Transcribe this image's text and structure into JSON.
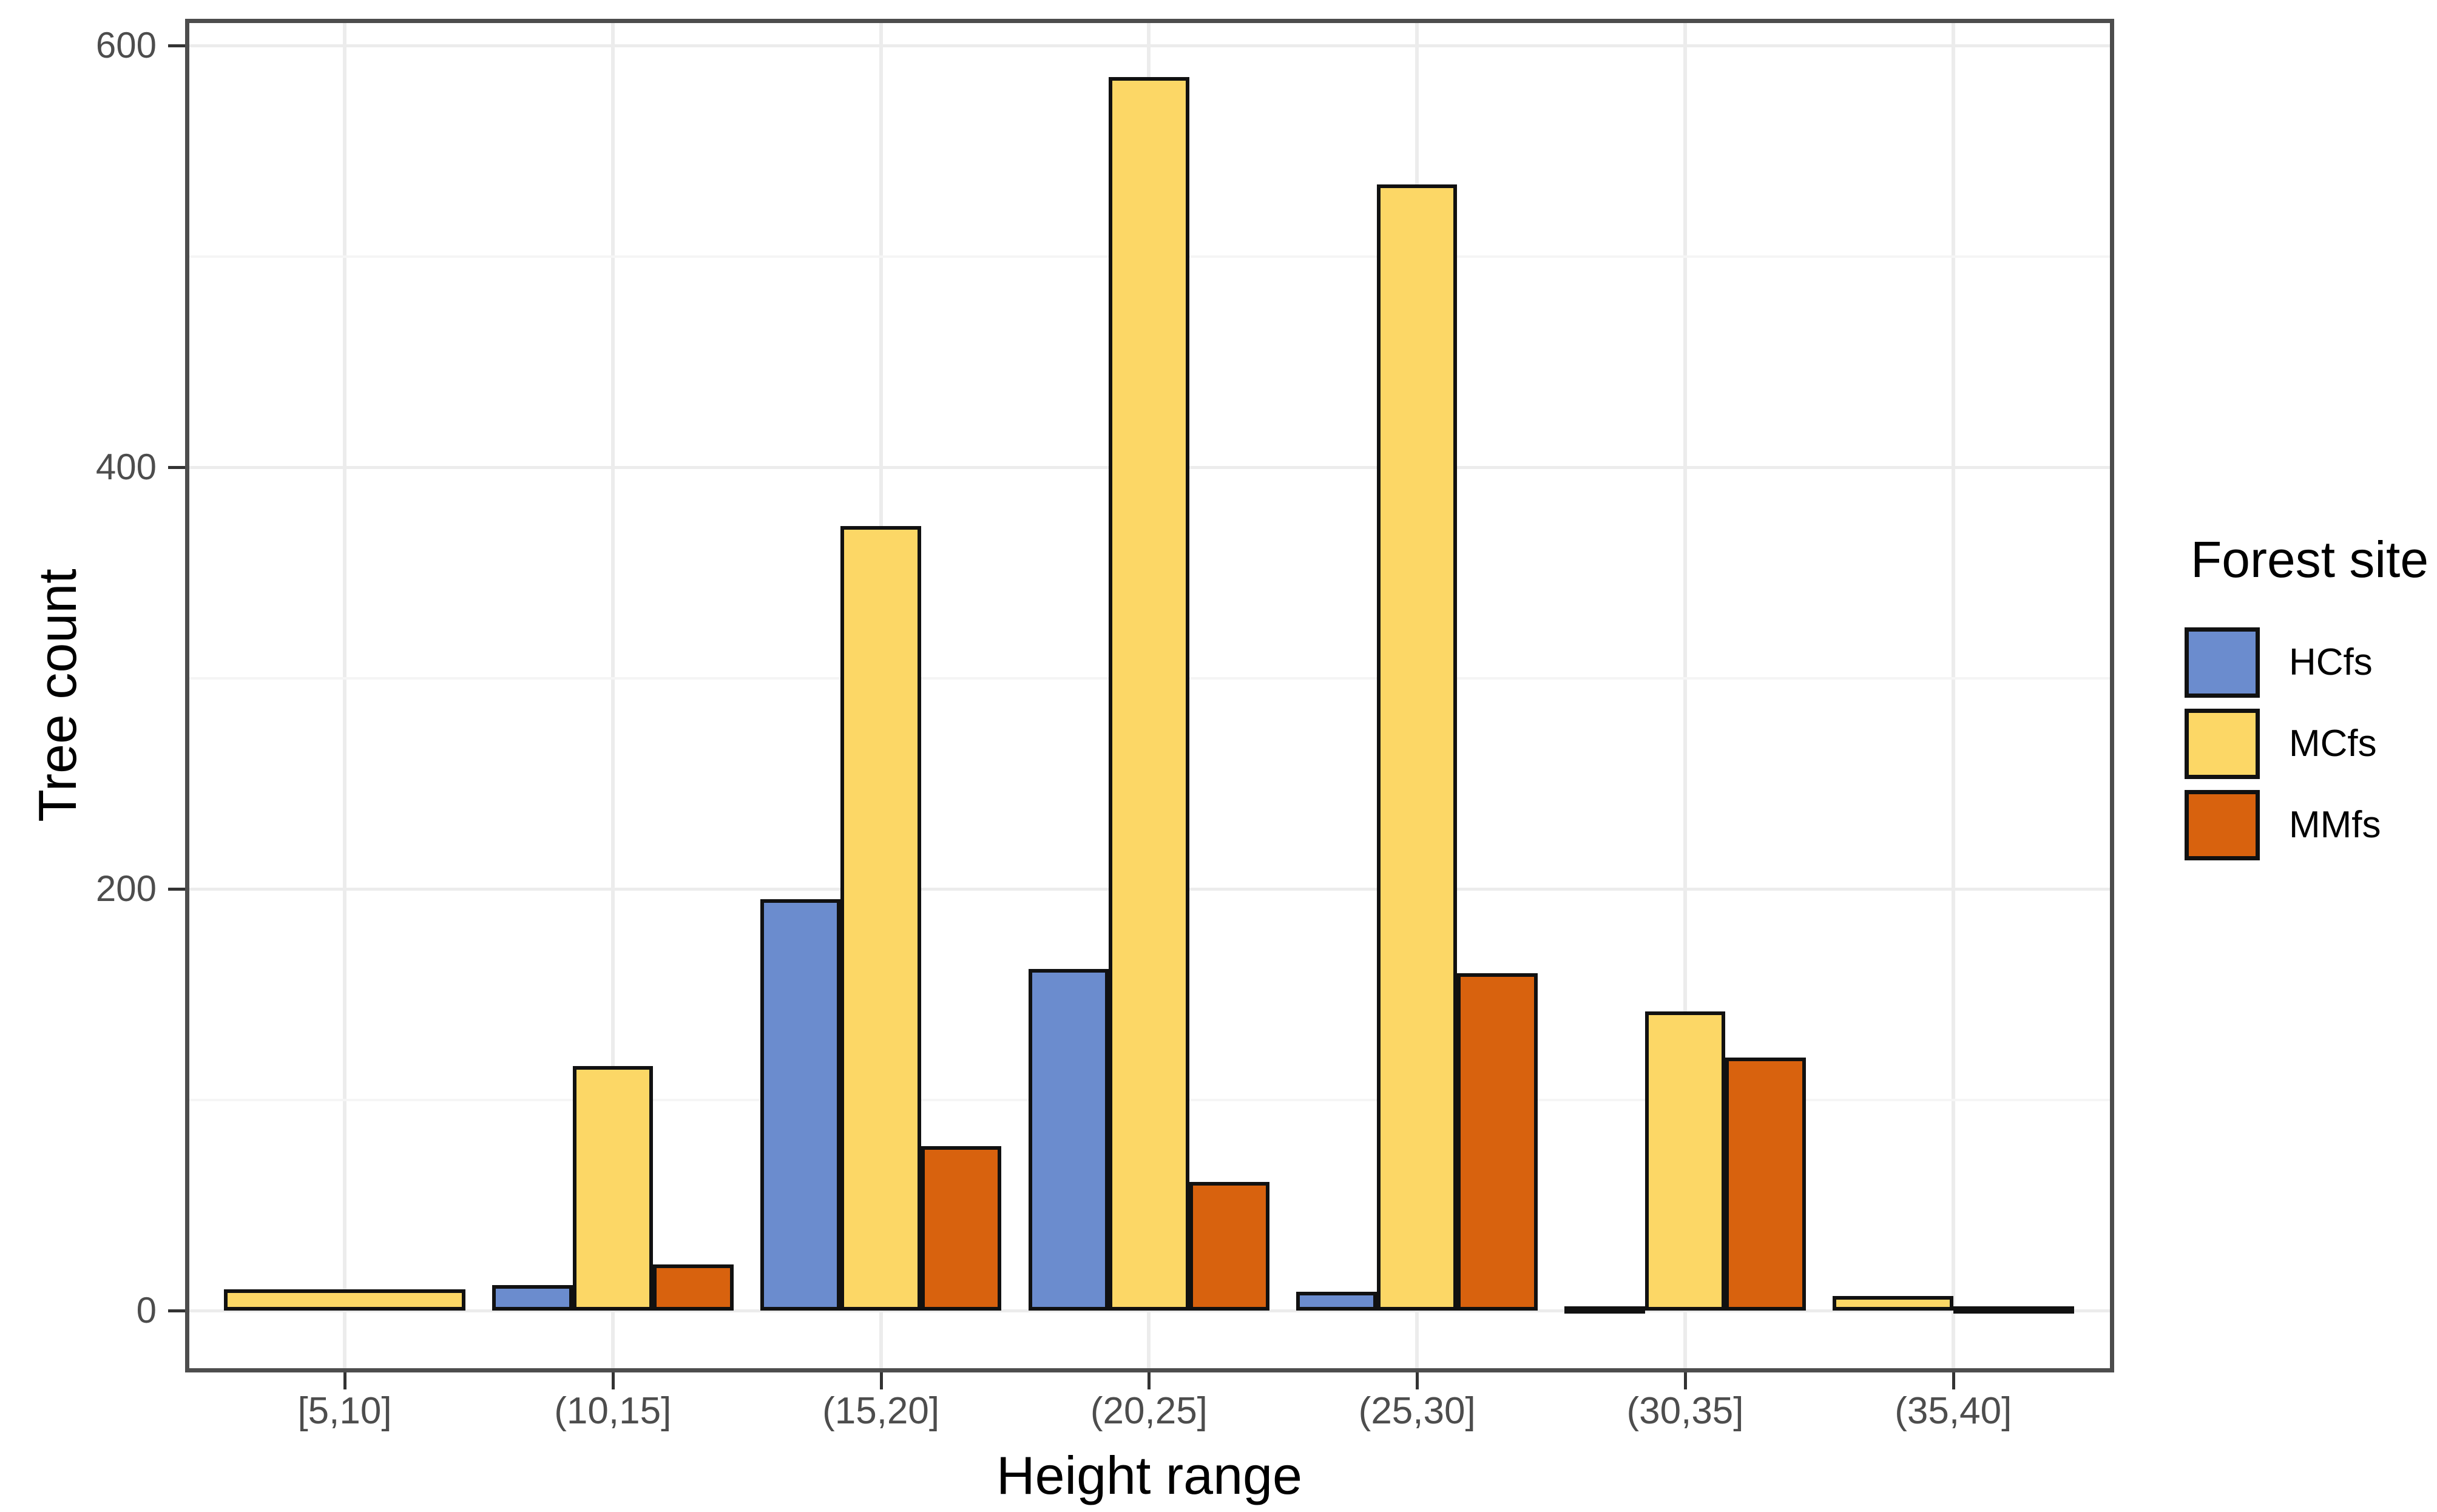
{
  "chart_data": {
    "type": "bar",
    "title": "",
    "xlabel": "Height range",
    "ylabel": "Tree count",
    "categories": [
      "[5,10]",
      "(10,15]",
      "(15,20]",
      "(20,25]",
      "(25,30]",
      "(30,35]",
      "(35,40]"
    ],
    "series": [
      {
        "name": "HCfs",
        "color": "#6B8CCE",
        "values": [
          null,
          12,
          195,
          162,
          9,
          2,
          null
        ]
      },
      {
        "name": "MCfs",
        "color": "#FCD766",
        "values": [
          10,
          116,
          372,
          585,
          534,
          142,
          7
        ]
      },
      {
        "name": "MMfs",
        "color": "#D8620E",
        "values": [
          null,
          22,
          78,
          61,
          160,
          120,
          2
        ]
      }
    ],
    "ylim": [
      0,
      620
    ],
    "yticks": [
      0,
      200,
      400,
      600
    ],
    "yticks_minor": [
      100,
      300,
      500
    ],
    "grid": "horizontal major+minor, vertical major at category centers",
    "legend_position": "right",
    "bar_outline_color": "#111111",
    "group_width_fraction": 0.9
  },
  "legend": {
    "title": "Forest site",
    "items": [
      {
        "label": "HCfs",
        "color": "#6B8CCE"
      },
      {
        "label": "MCfs",
        "color": "#FCD766"
      },
      {
        "label": "MMfs",
        "color": "#D8620E"
      }
    ]
  },
  "axes": {
    "x_title": "Height range",
    "y_title": "Tree count",
    "y_tick_labels": [
      "0",
      "200",
      "400",
      "600"
    ],
    "x_tick_labels": [
      "[5,10]",
      "(10,15]",
      "(15,20]",
      "(20,25]",
      "(25,30]",
      "(30,35]",
      "(35,40]"
    ]
  }
}
